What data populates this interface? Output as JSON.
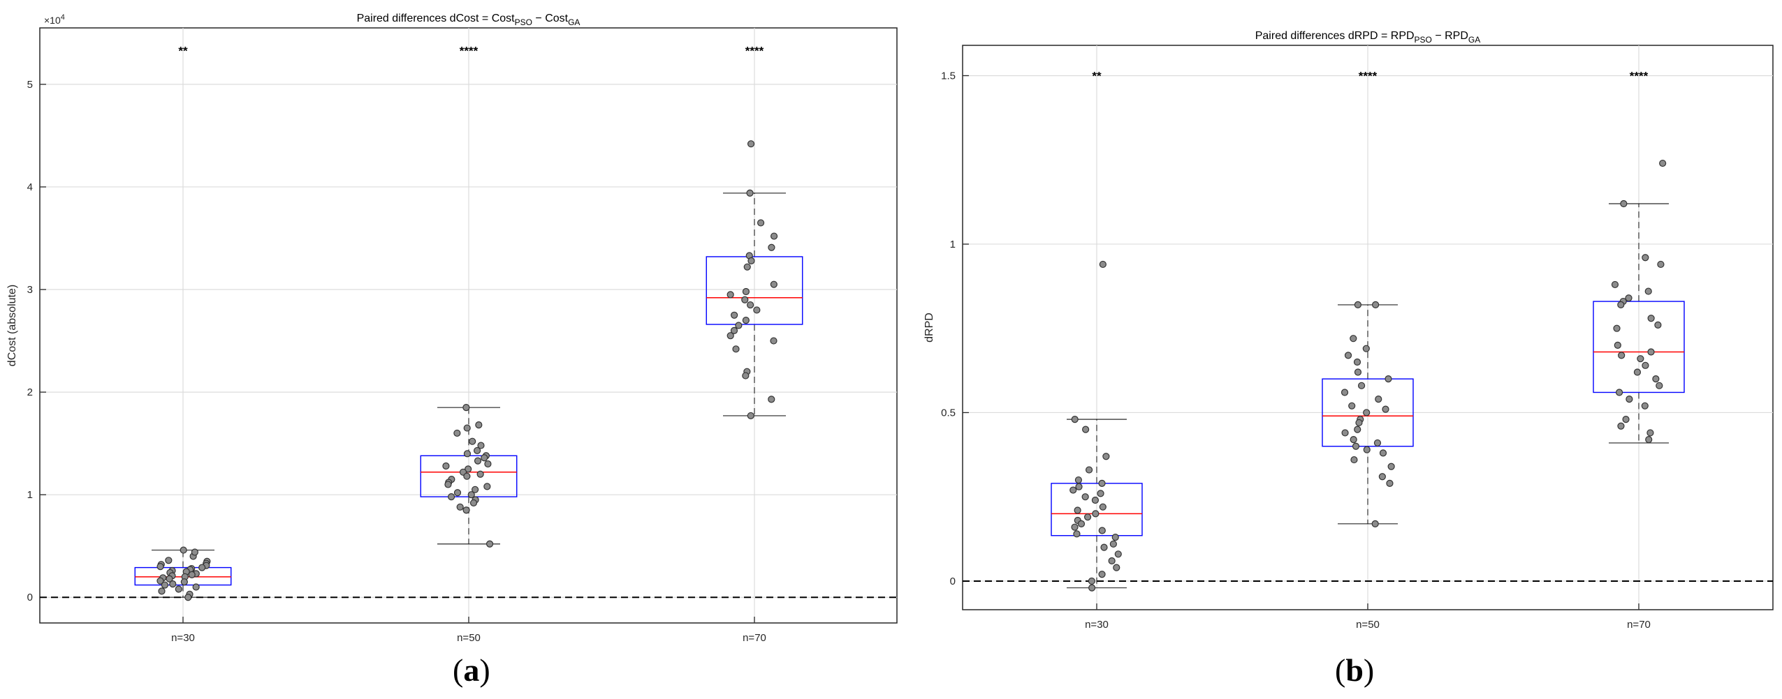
{
  "panels": {
    "a": "a",
    "b": "b"
  },
  "colors": {
    "box": "#0000ff",
    "median": "#ff0000",
    "whisker": "#000000",
    "points": "#8c8c8c",
    "zero_line": "#000000",
    "grid": "#dcdcdc"
  },
  "chart_data": [
    {
      "type": "box",
      "title": "Paired differences dCost = Cost",
      "title_parts": [
        "Paired differences dCost = Cost",
        "PSO",
        " − Cost",
        "GA"
      ],
      "ylabel": "dCost (absolute)",
      "exponent_label": "×10",
      "exponent_power": "4",
      "ylim": [
        -0.25,
        5.55
      ],
      "yticks": [
        0,
        1,
        2,
        3,
        4,
        5
      ],
      "ytick_labels": [
        "0",
        "1",
        "2",
        "3",
        "4",
        "5"
      ],
      "categories": [
        "n=30",
        "n=50",
        "n=70"
      ],
      "significance": [
        "**",
        "****",
        "****"
      ],
      "significance_y": 5.33,
      "zero_line": 0,
      "grid": true,
      "boxes": [
        {
          "q1": 0.12,
          "median": 0.2,
          "q3": 0.29,
          "whisker_low": 0.0,
          "whisker_high": 0.46
        },
        {
          "q1": 0.98,
          "median": 1.22,
          "q3": 1.38,
          "whisker_low": 0.52,
          "whisker_high": 1.85
        },
        {
          "q1": 2.66,
          "median": 2.92,
          "q3": 3.32,
          "whisker_low": 1.77,
          "whisker_high": 3.94
        }
      ],
      "points": [
        [
          0.46,
          0.4,
          0.44,
          0.36,
          0.35,
          0.33,
          0.32,
          0.3,
          0.31,
          0.28,
          0.29,
          0.27,
          0.25,
          0.26,
          0.24,
          0.23,
          0.22,
          0.21,
          0.2,
          0.19,
          0.18,
          0.16,
          0.15,
          0.13,
          0.12,
          0.1,
          0.08,
          0.06,
          0.03,
          0.0
        ],
        [
          1.85,
          1.68,
          1.65,
          1.6,
          1.52,
          1.48,
          1.43,
          1.4,
          1.38,
          1.36,
          1.33,
          1.3,
          1.28,
          1.25,
          1.22,
          1.2,
          1.18,
          1.15,
          1.12,
          1.1,
          1.08,
          1.05,
          1.02,
          1.0,
          0.98,
          0.95,
          0.92,
          0.88,
          0.85,
          0.52
        ],
        [
          4.42,
          3.94,
          3.65,
          3.52,
          3.41,
          3.33,
          3.28,
          3.22,
          3.05,
          2.98,
          2.95,
          2.9,
          2.85,
          2.8,
          2.75,
          2.7,
          2.65,
          2.6,
          2.55,
          2.5,
          2.42,
          2.2,
          2.16,
          1.93,
          1.77
        ]
      ]
    },
    {
      "type": "box",
      "title": "Paired differences dRPD = RPD",
      "title_parts": [
        "Paired differences dRPD = RPD",
        "PSO",
        " − RPD",
        "GA"
      ],
      "ylabel": "dRPD",
      "ylim": [
        -0.085,
        1.59
      ],
      "yticks": [
        0,
        0.5,
        1,
        1.5
      ],
      "ytick_labels": [
        "0",
        "0.5",
        "1",
        "1.5"
      ],
      "categories": [
        "n=30",
        "n=50",
        "n=70"
      ],
      "significance": [
        "**",
        "****",
        "****"
      ],
      "significance_y": 1.5,
      "zero_line": 0,
      "grid": true,
      "boxes": [
        {
          "q1": 0.135,
          "median": 0.2,
          "q3": 0.29,
          "whisker_low": -0.02,
          "whisker_high": 0.48
        },
        {
          "q1": 0.4,
          "median": 0.49,
          "q3": 0.6,
          "whisker_low": 0.17,
          "whisker_high": 0.82
        },
        {
          "q1": 0.56,
          "median": 0.68,
          "q3": 0.83,
          "whisker_low": 0.41,
          "whisker_high": 1.12
        }
      ],
      "points": [
        [
          0.94,
          0.48,
          0.45,
          0.37,
          0.33,
          0.3,
          0.29,
          0.28,
          0.27,
          0.26,
          0.25,
          0.24,
          0.22,
          0.21,
          0.2,
          0.19,
          0.18,
          0.17,
          0.16,
          0.15,
          0.14,
          0.13,
          0.11,
          0.1,
          0.08,
          0.06,
          0.04,
          0.02,
          0.0,
          -0.02
        ],
        [
          0.82,
          0.82,
          0.72,
          0.69,
          0.67,
          0.65,
          0.62,
          0.6,
          0.58,
          0.56,
          0.54,
          0.52,
          0.51,
          0.5,
          0.48,
          0.47,
          0.45,
          0.44,
          0.42,
          0.41,
          0.4,
          0.39,
          0.38,
          0.36,
          0.34,
          0.31,
          0.29,
          0.17
        ],
        [
          1.24,
          1.12,
          0.96,
          0.94,
          0.88,
          0.86,
          0.84,
          0.83,
          0.82,
          0.78,
          0.76,
          0.75,
          0.7,
          0.68,
          0.67,
          0.66,
          0.64,
          0.62,
          0.6,
          0.58,
          0.56,
          0.54,
          0.52,
          0.48,
          0.46,
          0.44,
          0.42
        ]
      ]
    }
  ]
}
